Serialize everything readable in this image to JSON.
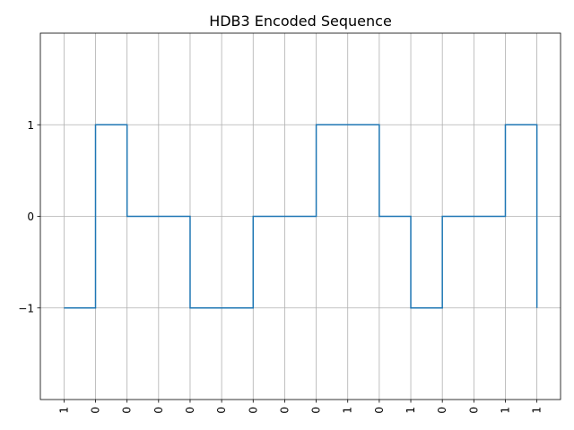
{
  "chart_data": {
    "type": "line",
    "step": "post",
    "title": "HDB3 Encoded Sequence",
    "xlabel": "",
    "ylabel": "",
    "x_tick_labels": [
      "1",
      "0",
      "0",
      "0",
      "0",
      "0",
      "0",
      "0",
      "0",
      "1",
      "0",
      "1",
      "0",
      "0",
      "1",
      "1"
    ],
    "x_tick_rotation": "vertical",
    "x": [
      0,
      1,
      2,
      3,
      4,
      5,
      6,
      7,
      8,
      9,
      10,
      11,
      12,
      13,
      14,
      15
    ],
    "values": [
      -1,
      1,
      0,
      0,
      -1,
      -1,
      0,
      0,
      1,
      1,
      0,
      -1,
      0,
      0,
      1,
      -1
    ],
    "y_ticks": [
      -1,
      0,
      1
    ],
    "y_tick_labels": [
      "−1",
      "0",
      "1"
    ],
    "ylim": [
      -2,
      2
    ],
    "xlim": [
      -0.75,
      15.75
    ],
    "grid": true,
    "legend": "none",
    "colors": {
      "series": "#1f77b4",
      "grid": "#b0b0b0",
      "axes": "#000000"
    }
  }
}
